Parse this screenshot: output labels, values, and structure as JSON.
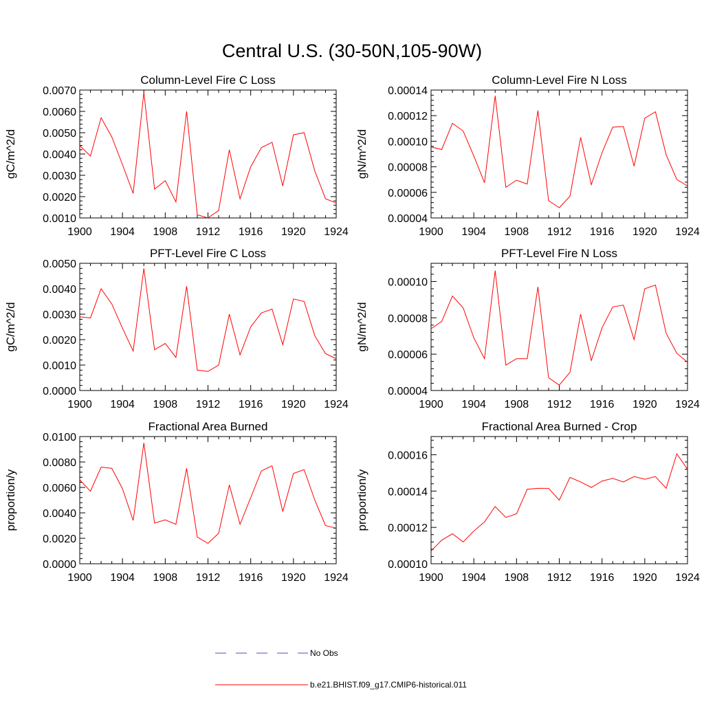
{
  "page_title": "Central U.S. (30-50N,105-90W)",
  "colors": {
    "series": "#ff0000",
    "obs": "#4b4bc8",
    "axis": "#000000"
  },
  "legend": {
    "obs_label": "No Obs",
    "series_label": "b.e21.BHIST.f09_g17.CMIP6-historical.011"
  },
  "chart_data": [
    {
      "type": "line",
      "title": "Column-Level Fire C Loss",
      "ylabel": "gC/m^2/d",
      "xlim": [
        1900,
        1924
      ],
      "ylim": [
        0.001,
        0.007
      ],
      "yticks": [
        0.001,
        0.002,
        0.003,
        0.004,
        0.005,
        0.006,
        0.007
      ],
      "ytick_labels": [
        "0.0010",
        "0.0020",
        "0.0030",
        "0.0040",
        "0.0050",
        "0.0060",
        "0.0070"
      ],
      "xticks": [
        1900,
        1904,
        1908,
        1912,
        1916,
        1920,
        1924
      ],
      "xtick_labels": [
        "1900",
        "1904",
        "1908",
        "1912",
        "1916",
        "1920",
        "1924"
      ],
      "x": [
        1900,
        1901,
        1902,
        1903,
        1904,
        1905,
        1906,
        1907,
        1908,
        1909,
        1910,
        1911,
        1912,
        1913,
        1914,
        1915,
        1916,
        1917,
        1918,
        1919,
        1920,
        1921,
        1922,
        1923,
        1924
      ],
      "series": [
        {
          "values": [
            0.0044,
            0.0039,
            0.0057,
            0.0048,
            0.0035,
            0.00215,
            0.0069,
            0.00235,
            0.00275,
            0.00175,
            0.006,
            0.00115,
            0.001,
            0.00135,
            0.0042,
            0.0019,
            0.0034,
            0.0043,
            0.00455,
            0.0025,
            0.0049,
            0.005,
            0.0032,
            0.0019,
            0.0017
          ]
        }
      ]
    },
    {
      "type": "line",
      "title": "Column-Level Fire N Loss",
      "ylabel": "gN/m^2/d",
      "xlim": [
        1900,
        1924
      ],
      "ylim": [
        4e-05,
        0.00014
      ],
      "yticks": [
        4e-05,
        6e-05,
        8e-05,
        0.0001,
        0.00012,
        0.00014
      ],
      "ytick_labels": [
        "0.00004",
        "0.00006",
        "0.00008",
        "0.00010",
        "0.00012",
        "0.00014"
      ],
      "xticks": [
        1900,
        1904,
        1908,
        1912,
        1916,
        1920,
        1924
      ],
      "xtick_labels": [
        "1900",
        "1904",
        "1908",
        "1912",
        "1916",
        "1920",
        "1924"
      ],
      "x": [
        1900,
        1901,
        1902,
        1903,
        1904,
        1905,
        1906,
        1907,
        1908,
        1909,
        1910,
        1911,
        1912,
        1913,
        1914,
        1915,
        1916,
        1917,
        1918,
        1919,
        1920,
        1921,
        1922,
        1923,
        1924
      ],
      "series": [
        {
          "values": [
            9.55e-05,
            9.35e-05,
            0.000114,
            0.000108,
            8.85e-05,
            6.75e-05,
            0.0001355,
            6.4e-05,
            6.95e-05,
            6.65e-05,
            0.000124,
            5.35e-05,
            4.8e-05,
            5.7e-05,
            0.000103,
            6.6e-05,
            9.1e-05,
            0.000111,
            0.0001115,
            8.05e-05,
            0.000118,
            0.000123,
            8.95e-05,
            7e-05,
            6.5e-05
          ]
        }
      ]
    },
    {
      "type": "line",
      "title": "PFT-Level Fire C Loss",
      "ylabel": "gC/m^2/d",
      "xlim": [
        1900,
        1924
      ],
      "ylim": [
        0.0,
        0.005
      ],
      "yticks": [
        0.0,
        0.001,
        0.002,
        0.003,
        0.004,
        0.005
      ],
      "ytick_labels": [
        "0.0000",
        "0.0010",
        "0.0020",
        "0.0030",
        "0.0040",
        "0.0050"
      ],
      "xticks": [
        1900,
        1904,
        1908,
        1912,
        1916,
        1920,
        1924
      ],
      "xtick_labels": [
        "1900",
        "1904",
        "1908",
        "1912",
        "1916",
        "1920",
        "1924"
      ],
      "x": [
        1900,
        1901,
        1902,
        1903,
        1904,
        1905,
        1906,
        1907,
        1908,
        1909,
        1910,
        1911,
        1912,
        1913,
        1914,
        1915,
        1916,
        1917,
        1918,
        1919,
        1920,
        1921,
        1922,
        1923,
        1924
      ],
      "series": [
        {
          "values": [
            0.0029,
            0.00285,
            0.004,
            0.0034,
            0.00245,
            0.00155,
            0.0048,
            0.0016,
            0.00185,
            0.0013,
            0.0041,
            0.0008,
            0.00075,
            0.001,
            0.003,
            0.0014,
            0.0025,
            0.00305,
            0.0032,
            0.0018,
            0.0036,
            0.0035,
            0.00215,
            0.00145,
            0.00125
          ]
        }
      ]
    },
    {
      "type": "line",
      "title": "PFT-Level Fire N Loss",
      "ylabel": "gN/m^2/d",
      "xlim": [
        1900,
        1924
      ],
      "ylim": [
        4e-05,
        0.00011
      ],
      "yticks": [
        4e-05,
        6e-05,
        8e-05,
        0.0001
      ],
      "ytick_labels": [
        "0.00004",
        "0.00006",
        "0.00008",
        "0.00010"
      ],
      "xticks": [
        1900,
        1904,
        1908,
        1912,
        1916,
        1920,
        1924
      ],
      "xtick_labels": [
        "1900",
        "1904",
        "1908",
        "1912",
        "1916",
        "1920",
        "1924"
      ],
      "x": [
        1900,
        1901,
        1902,
        1903,
        1904,
        1905,
        1906,
        1907,
        1908,
        1909,
        1910,
        1911,
        1912,
        1913,
        1914,
        1915,
        1916,
        1917,
        1918,
        1919,
        1920,
        1921,
        1922,
        1923,
        1924
      ],
      "series": [
        {
          "values": [
            7.4e-05,
            7.8e-05,
            9.2e-05,
            8.55e-05,
            6.9e-05,
            5.75e-05,
            0.000106,
            5.4e-05,
            5.75e-05,
            5.75e-05,
            9.7e-05,
            4.7e-05,
            4.3e-05,
            5e-05,
            8.2e-05,
            5.65e-05,
            7.45e-05,
            8.6e-05,
            8.7e-05,
            6.8e-05,
            9.6e-05,
            9.8e-05,
            7.15e-05,
            6.05e-05,
            5.55e-05
          ]
        }
      ]
    },
    {
      "type": "line",
      "title": "Fractional Area Burned",
      "ylabel": "proportion/y",
      "xlim": [
        1900,
        1924
      ],
      "ylim": [
        0.0,
        0.01
      ],
      "yticks": [
        0.0,
        0.002,
        0.004,
        0.006,
        0.008,
        0.01
      ],
      "ytick_labels": [
        "0.0000",
        "0.0020",
        "0.0040",
        "0.0060",
        "0.0080",
        "0.0100"
      ],
      "xticks": [
        1900,
        1904,
        1908,
        1912,
        1916,
        1920,
        1924
      ],
      "xtick_labels": [
        "1900",
        "1904",
        "1908",
        "1912",
        "1916",
        "1920",
        "1924"
      ],
      "x": [
        1900,
        1901,
        1902,
        1903,
        1904,
        1905,
        1906,
        1907,
        1908,
        1909,
        1910,
        1911,
        1912,
        1913,
        1914,
        1915,
        1916,
        1917,
        1918,
        1919,
        1920,
        1921,
        1922,
        1923,
        1924
      ],
      "series": [
        {
          "values": [
            0.0066,
            0.0057,
            0.0076,
            0.0075,
            0.0059,
            0.0034,
            0.0095,
            0.0032,
            0.00345,
            0.0031,
            0.0075,
            0.0021,
            0.0016,
            0.0024,
            0.0062,
            0.0031,
            0.0052,
            0.0073,
            0.0077,
            0.0041,
            0.0071,
            0.0074,
            0.005,
            0.003,
            0.0028
          ]
        }
      ]
    },
    {
      "type": "line",
      "title": "Fractional Area Burned - Crop",
      "ylabel": "proportion/y",
      "xlim": [
        1900,
        1924
      ],
      "ylim": [
        0.0001,
        0.00017
      ],
      "yticks": [
        0.0001,
        0.00012,
        0.00014,
        0.00016
      ],
      "ytick_labels": [
        "0.00010",
        "0.00012",
        "0.00014",
        "0.00016"
      ],
      "xticks": [
        1900,
        1904,
        1908,
        1912,
        1916,
        1920,
        1924
      ],
      "xtick_labels": [
        "1900",
        "1904",
        "1908",
        "1912",
        "1916",
        "1920",
        "1924"
      ],
      "x": [
        1900,
        1901,
        1902,
        1903,
        1904,
        1905,
        1906,
        1907,
        1908,
        1909,
        1910,
        1911,
        1912,
        1913,
        1914,
        1915,
        1916,
        1917,
        1918,
        1919,
        1920,
        1921,
        1922,
        1923,
        1924
      ],
      "series": [
        {
          "values": [
            0.000107,
            0.000113,
            0.0001165,
            0.000112,
            0.000118,
            0.000123,
            0.0001315,
            0.0001255,
            0.0001275,
            0.000141,
            0.0001415,
            0.0001415,
            0.000135,
            0.0001475,
            0.000145,
            0.000142,
            0.0001455,
            0.000147,
            0.000145,
            0.000148,
            0.0001465,
            0.000148,
            0.0001415,
            0.0001605,
            0.000152
          ]
        }
      ]
    }
  ]
}
